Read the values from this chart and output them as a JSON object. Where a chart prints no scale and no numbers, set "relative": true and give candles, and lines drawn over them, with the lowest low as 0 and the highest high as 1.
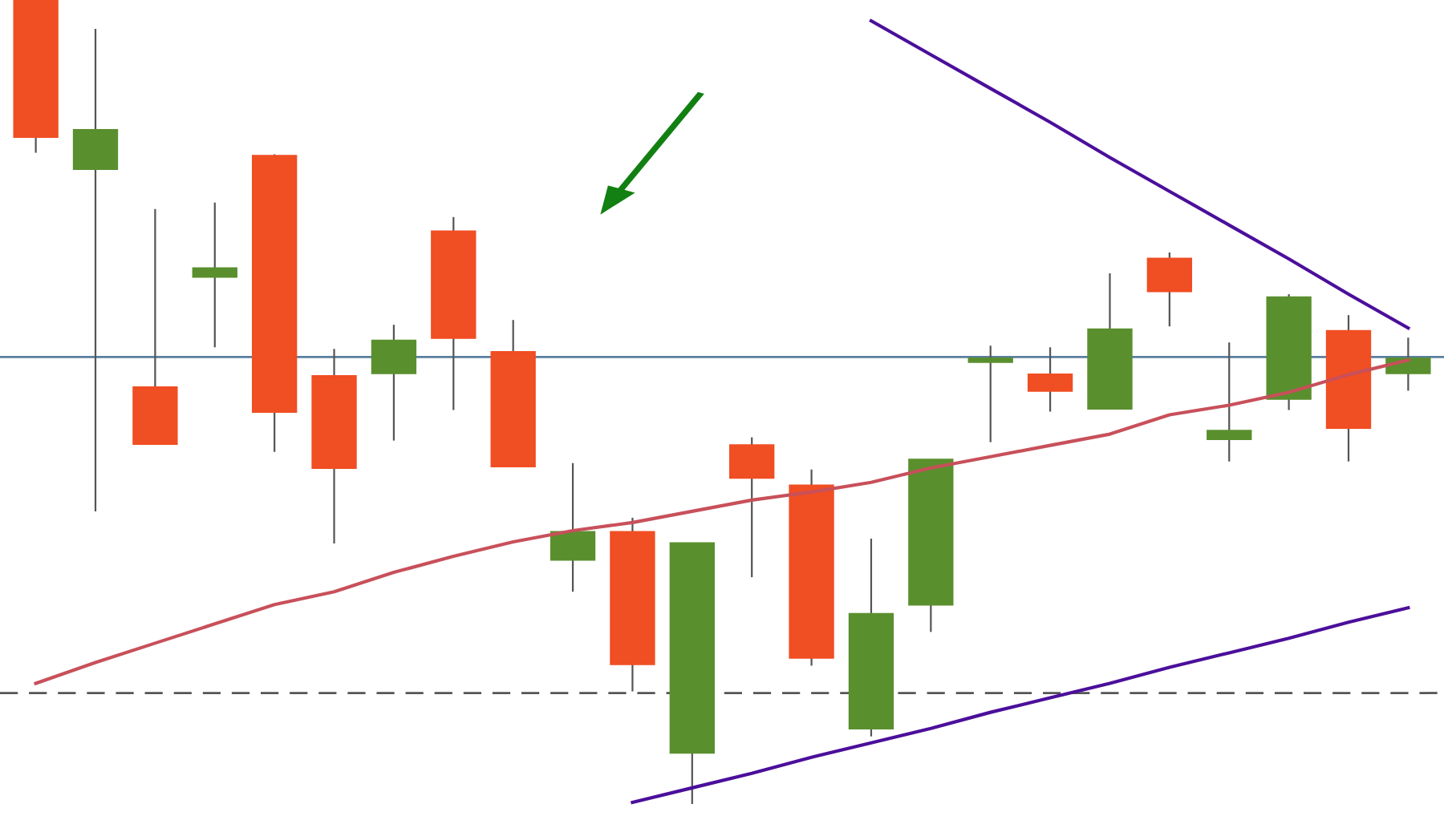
{
  "chart_data": {
    "type": "candlestick",
    "relative": true,
    "categories": [
      null,
      null,
      null,
      null,
      null,
      null,
      null,
      null,
      null,
      null,
      null,
      null,
      null,
      null,
      null,
      null,
      null,
      null,
      null,
      null,
      null,
      null,
      null,
      null
    ],
    "ohlc": [
      [
        1.0,
        1.0,
        0.81,
        0.83
      ],
      [
        0.79,
        0.964,
        0.364,
        0.838
      ],
      [
        0.518,
        0.74,
        0.448,
        0.448
      ],
      [
        0.656,
        0.748,
        0.568,
        0.666
      ],
      [
        0.806,
        0.808,
        0.438,
        0.488
      ],
      [
        0.532,
        0.566,
        0.324,
        0.418
      ],
      [
        0.536,
        0.596,
        0.452,
        0.576
      ],
      [
        0.712,
        0.73,
        0.49,
        0.58
      ],
      [
        0.562,
        0.602,
        0.42,
        0.42
      ],
      [
        0.304,
        0.424,
        0.264,
        0.338
      ],
      [
        0.338,
        0.356,
        0.14,
        0.174
      ],
      [
        0.064,
        0.324,
        0.0,
        0.324
      ],
      [
        0.446,
        0.456,
        0.282,
        0.406
      ],
      [
        0.396,
        0.416,
        0.172,
        0.182
      ],
      [
        0.094,
        0.33,
        0.084,
        0.236
      ],
      [
        0.248,
        0.428,
        0.214,
        0.428
      ],
      [
        0.55,
        0.57,
        0.45,
        0.554
      ],
      [
        0.534,
        0.568,
        0.488,
        0.514
      ],
      [
        0.492,
        0.66,
        0.492,
        0.59
      ],
      [
        0.678,
        0.686,
        0.594,
        0.638
      ],
      [
        0.454,
        0.574,
        0.426,
        0.464
      ],
      [
        0.504,
        0.634,
        0.49,
        0.63
      ],
      [
        0.588,
        0.608,
        0.426,
        0.468
      ],
      [
        0.536,
        0.58,
        0.514,
        0.554
      ]
    ],
    "colors": [
      "#f04e23",
      "#5a8f2e",
      "#f04e23",
      "#5a8f2e",
      "#f04e23",
      "#f04e23",
      "#5a8f2e",
      "#f04e23",
      "#f04e23",
      "#5a8f2e",
      "#f04e23",
      "#5a8f2e",
      "#f04e23",
      "#f04e23",
      "#5a8f2e",
      "#5a8f2e",
      "#5a8f2e",
      "#f04e23",
      "#5a8f2e",
      "#f04e23",
      "#5a8f2e",
      "#5a8f2e",
      "#f04e23",
      "#5a8f2e"
    ],
    "series": [
      {
        "type": "line",
        "color": "#c8505a",
        "values": [
          0.15,
          0.176,
          0.2,
          0.224,
          0.248,
          0.264,
          0.288,
          0.308,
          0.326,
          0.34,
          0.35,
          0.364,
          0.378,
          0.388,
          0.4,
          0.418,
          0.432,
          0.446,
          0.46,
          0.484,
          0.496,
          0.512,
          0.534,
          0.552
        ]
      },
      {
        "type": "line",
        "color": "#4b0f9b",
        "values": [
          null,
          null,
          null,
          null,
          null,
          null,
          null,
          null,
          null,
          null,
          null,
          null,
          null,
          null,
          0.974,
          0.932,
          0.89,
          0.848,
          0.804,
          0.762,
          0.72,
          0.678,
          0.634,
          0.592
        ]
      },
      {
        "type": "line",
        "color": "#4b0f9b",
        "values": [
          null,
          null,
          null,
          null,
          null,
          null,
          null,
          null,
          null,
          null,
          0.002,
          0.02,
          0.038,
          0.058,
          0.076,
          0.094,
          0.114,
          0.132,
          0.15,
          0.17,
          0.188,
          0.206,
          0.226,
          0.244
        ]
      }
    ],
    "ref_lines": [
      {
        "axis": "y",
        "value": 0.556,
        "color": "#5a7fa0",
        "line_style": "solid"
      },
      {
        "axis": "y",
        "value": 0.138,
        "color": "#555555",
        "line_style": "dashed"
      }
    ]
  }
}
